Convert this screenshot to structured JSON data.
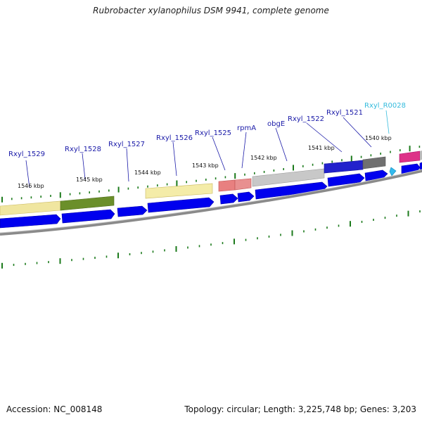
{
  "title": "Rubrobacter xylanophilus DSM 9941, complete genome",
  "footer": {
    "accession": "Accession: NC_008148",
    "summary": "Topology: circular; Length: 3,225,748 bp; Genes: 3,203"
  },
  "colors": {
    "gene_label": "#1a1aa8",
    "rna_label": "#33bbdd",
    "cds_arrow": "#0000ee",
    "backbone": "#8a8a8a",
    "tick": "#1b7a1b"
  },
  "genes": [
    {
      "name": "Rxyl_1529",
      "color": "#1a1aa8"
    },
    {
      "name": "Rxyl_1528",
      "color": "#1a1aa8"
    },
    {
      "name": "Rxyl_1527",
      "color": "#1a1aa8"
    },
    {
      "name": "Rxyl_1526",
      "color": "#1a1aa8"
    },
    {
      "name": "Rxyl_1525",
      "color": "#1a1aa8"
    },
    {
      "name": "rpmA",
      "color": "#1a1aa8"
    },
    {
      "name": "obgE",
      "color": "#1a1aa8"
    },
    {
      "name": "Rxyl_1522",
      "color": "#1a1aa8"
    },
    {
      "name": "Rxyl_1521",
      "color": "#1a1aa8"
    },
    {
      "name": "Rxyl_R0028",
      "color": "#33bbdd"
    }
  ],
  "kbp_labels": [
    "1546 kbp",
    "1545 kbp",
    "1544 kbp",
    "1543 kbp",
    "1542 kbp",
    "1541 kbp",
    "1540 kbp"
  ]
}
